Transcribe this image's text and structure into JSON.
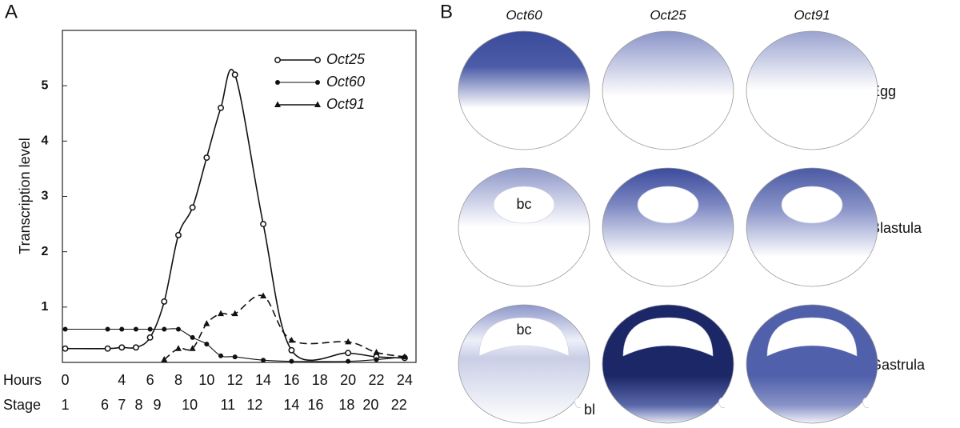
{
  "panels": [
    "A",
    "B"
  ],
  "chart_data": {
    "type": "line",
    "ylabel": "Transcription level",
    "xlabel": "Hours",
    "stage_label": "Stage",
    "xlim": [
      -0.2,
      24.8
    ],
    "ylim": [
      0,
      6
    ],
    "yticks": [
      1,
      2,
      3,
      4,
      5
    ],
    "xticks": [
      0,
      4,
      6,
      8,
      10,
      12,
      14,
      16,
      18,
      20,
      22,
      24
    ],
    "stage_ticks": [
      {
        "value": 0,
        "label": "1"
      },
      {
        "value": 2.8,
        "label": "6"
      },
      {
        "value": 4,
        "label": "7"
      },
      {
        "value": 5.2,
        "label": "8"
      },
      {
        "value": 6.5,
        "label": "9"
      },
      {
        "value": 8.8,
        "label": "10"
      },
      {
        "value": 11.5,
        "label": "11"
      },
      {
        "value": 13.4,
        "label": "12"
      },
      {
        "value": 16,
        "label": "14"
      },
      {
        "value": 17.7,
        "label": "16"
      },
      {
        "value": 19.9,
        "label": "18"
      },
      {
        "value": 21.6,
        "label": "20"
      },
      {
        "value": 23.6,
        "label": "22"
      }
    ],
    "legend": "upper right",
    "series": [
      {
        "name": "Oct25",
        "color": "#111111",
        "marker": "open-circle",
        "dashed": false,
        "x": [
          0,
          3,
          4,
          5,
          6,
          7,
          8,
          9,
          10,
          11,
          12,
          14,
          16,
          20,
          22,
          24
        ],
        "values": [
          0.25,
          0.25,
          0.27,
          0.27,
          0.45,
          1.1,
          2.3,
          2.8,
          3.7,
          4.6,
          5.2,
          2.5,
          0.22,
          0.17,
          0.1,
          0.08
        ]
      },
      {
        "name": "Oct60",
        "color": "#111111",
        "marker": "dot",
        "dashed": false,
        "x": [
          0,
          3,
          4,
          5,
          6,
          7,
          8,
          9,
          10,
          11,
          12,
          14,
          16,
          20,
          22,
          24
        ],
        "values": [
          0.6,
          0.6,
          0.6,
          0.6,
          0.6,
          0.6,
          0.6,
          0.45,
          0.33,
          0.12,
          0.1,
          0.04,
          0.02,
          0.02,
          0.05,
          0.1
        ]
      },
      {
        "name": "Oct91",
        "color": "#111111",
        "marker": "triangle",
        "dashed": true,
        "x": [
          7,
          8,
          9,
          10,
          11,
          12,
          14,
          16,
          20,
          22,
          24
        ],
        "values": [
          0.05,
          0.25,
          0.25,
          0.7,
          0.88,
          0.88,
          1.2,
          0.4,
          0.37,
          0.18,
          0.1
        ]
      }
    ]
  },
  "diagram": {
    "columns": [
      "Oct60",
      "Oct25",
      "Oct91"
    ],
    "rows": [
      "Egg",
      "Blastula",
      "Gastrula"
    ],
    "annotations": {
      "blastula_cavity": "bc",
      "gastrula_cavity": "bc",
      "blastopore": "bl"
    }
  }
}
